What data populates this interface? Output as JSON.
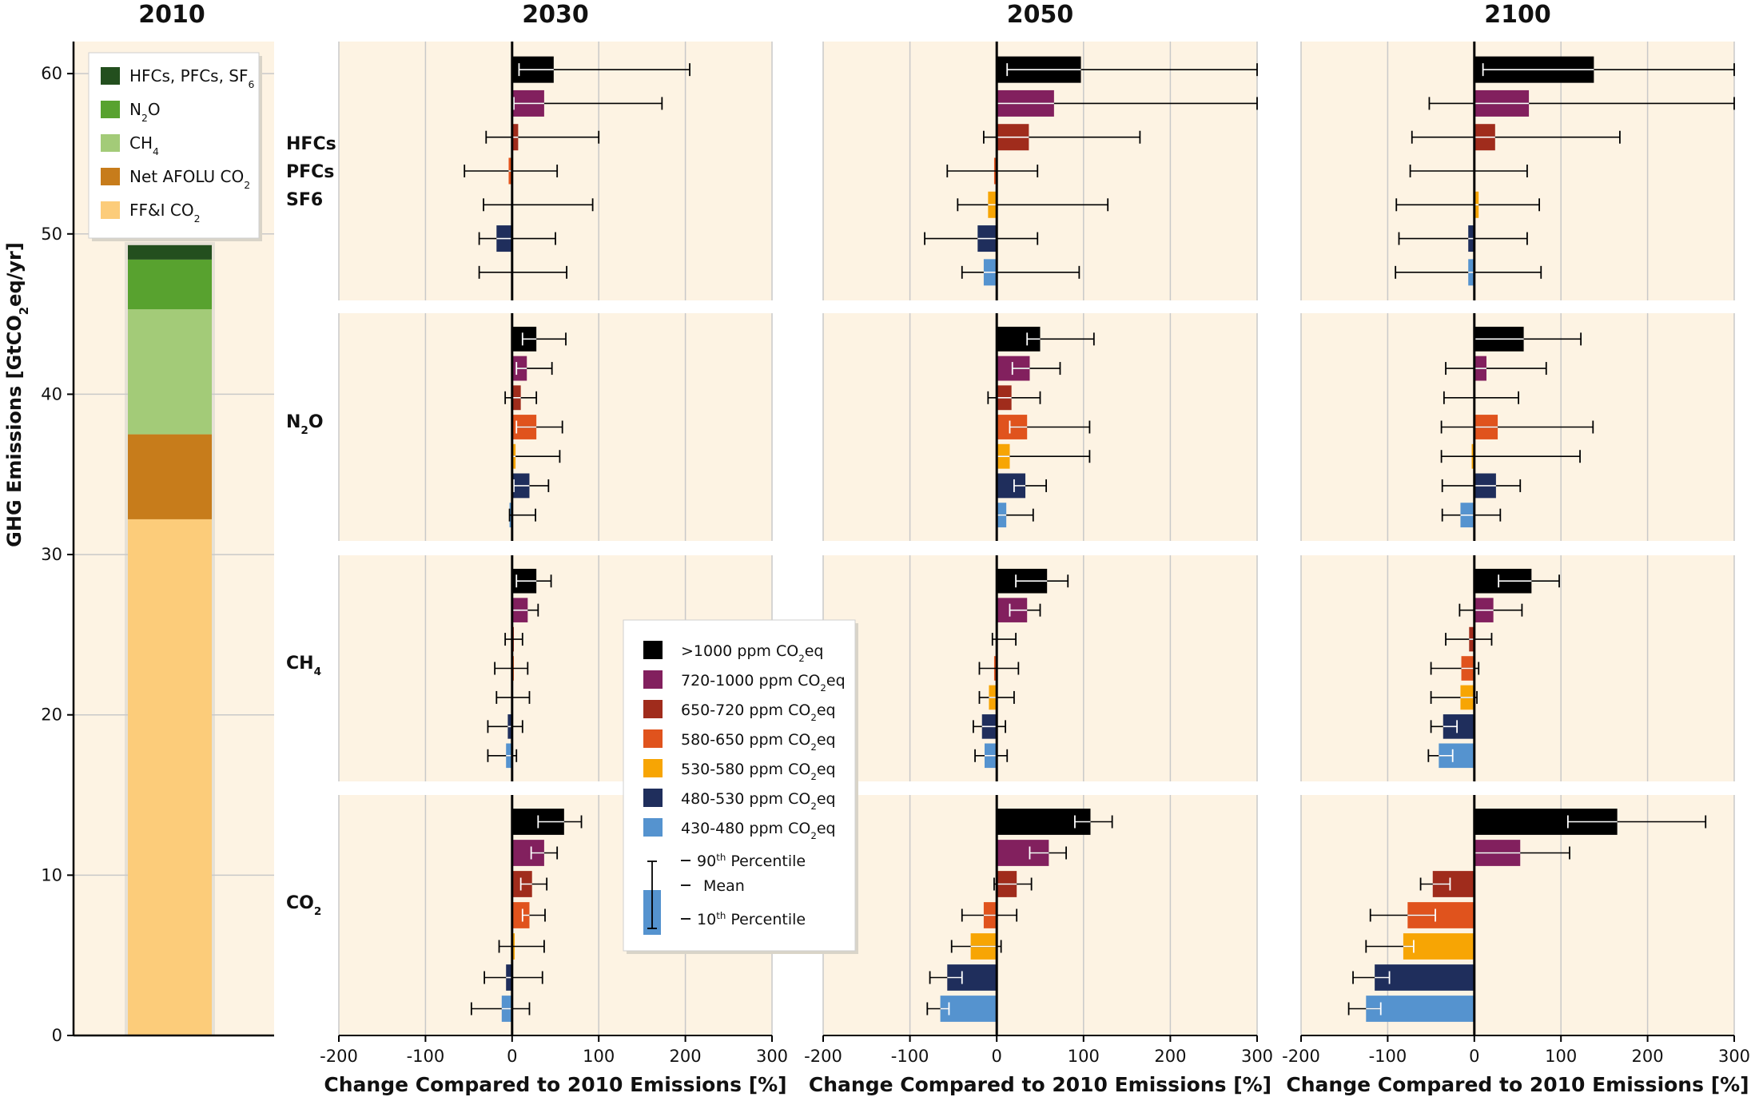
{
  "chart_data": {
    "type": "bar",
    "colors": {
      "panel_bg": "#fdf3e3",
      "grid": "#c9c9c9",
      "hfc": "#234f1e",
      "n2o": "#58a22f",
      "ch4": "#a3cb78",
      "afolu": "#c77c1b",
      "ffi": "#fccc7a",
      "s1000": "#000000",
      "s720": "#82205e",
      "s650": "#a02c1c",
      "s580": "#e0531d",
      "s530": "#f7a504",
      "s480": "#1f2e5c",
      "s430": "#5593cf"
    },
    "left_panel": {
      "title": "2010",
      "ylabel": "GHG Emissions [GtCO₂eq/yr]",
      "ylim": [
        0,
        62
      ],
      "yticks": [
        "0",
        "10",
        "20",
        "30",
        "40",
        "50",
        "60"
      ],
      "stack": [
        {
          "name": "FF&I CO₂",
          "value": 32.2,
          "color_key": "ffi"
        },
        {
          "name": "Net AFOLU CO₂",
          "value": 5.3,
          "color_key": "afolu"
        },
        {
          "name": "CH₄",
          "value": 7.8,
          "color_key": "ch4"
        },
        {
          "name": "N₂O",
          "value": 3.1,
          "color_key": "n2o"
        },
        {
          "name": "HFCs, PFCs, SF₆",
          "value": 0.9,
          "color_key": "hfc"
        }
      ],
      "legend": [
        {
          "label": "HFCs, PFCs, SF₆",
          "color_key": "hfc"
        },
        {
          "label": "N₂O",
          "color_key": "n2o"
        },
        {
          "label": "CH₄",
          "color_key": "ch4"
        },
        {
          "label": "Net AFOLU CO₂",
          "color_key": "afolu"
        },
        {
          "label": "FF&I CO₂",
          "color_key": "ffi"
        }
      ]
    },
    "years": [
      "2030",
      "2050",
      "2100"
    ],
    "gases": [
      "HFCs\nPFCs\nSF6",
      "N₂O",
      "CH₄",
      "CO₂"
    ],
    "xlabel": "Change Compared to 2010 Emissions [%]",
    "xlim": [
      -200,
      300
    ],
    "xticks": [
      "-200",
      "-100",
      "0",
      "100",
      "200",
      "300"
    ],
    "series": [
      {
        "name": ">1000 ppm CO₂eq",
        "color_key": "s1000"
      },
      {
        "name": "720-1000 ppm CO₂eq",
        "color_key": "s720"
      },
      {
        "name": "650-720 ppm CO₂eq",
        "color_key": "s650"
      },
      {
        "name": "580-650 ppm CO₂eq",
        "color_key": "s580"
      },
      {
        "name": "530-580 ppm CO₂eq",
        "color_key": "s530"
      },
      {
        "name": "480-530 ppm CO₂eq",
        "color_key": "s480"
      },
      {
        "name": "430-480 ppm CO₂eq",
        "color_key": "s430"
      }
    ],
    "series_legend_note": {
      "p90": "90th Percentile",
      "mean": "Mean",
      "p10": "10th Percentile"
    },
    "values": {
      "2030": [
        [
          [
            48,
            8,
            205
          ],
          [
            37,
            2,
            173
          ],
          [
            7,
            -30,
            100
          ],
          [
            -4,
            -55,
            52
          ],
          [
            1,
            -33,
            93
          ],
          [
            -18,
            -38,
            50
          ],
          [
            0,
            -38,
            63
          ]
        ],
        [
          [
            28,
            12,
            62
          ],
          [
            17,
            5,
            46
          ],
          [
            10,
            -8,
            28
          ],
          [
            28,
            5,
            58
          ],
          [
            4,
            0,
            55
          ],
          [
            20,
            2,
            42
          ],
          [
            -3,
            -3,
            27
          ]
        ],
        [
          [
            28,
            5,
            45
          ],
          [
            18,
            0,
            30
          ],
          [
            2,
            -8,
            12
          ],
          [
            2,
            -20,
            18
          ],
          [
            1,
            -18,
            20
          ],
          [
            -5,
            -28,
            12
          ],
          [
            -7,
            -28,
            5
          ]
        ],
        [
          [
            60,
            30,
            80
          ],
          [
            37,
            22,
            52
          ],
          [
            23,
            10,
            40
          ],
          [
            20,
            12,
            38
          ],
          [
            3,
            -15,
            37
          ],
          [
            -7,
            -32,
            35
          ],
          [
            -12,
            -47,
            20
          ]
        ]
      ],
      "2050": [
        [
          [
            97,
            12,
            300
          ],
          [
            66,
            0,
            300
          ],
          [
            37,
            -15,
            165
          ],
          [
            -3,
            -57,
            47
          ],
          [
            -10,
            -45,
            128
          ],
          [
            -22,
            -83,
            47
          ],
          [
            -15,
            -40,
            95
          ]
        ],
        [
          [
            50,
            35,
            112
          ],
          [
            38,
            18,
            73
          ],
          [
            17,
            -10,
            50
          ],
          [
            35,
            15,
            107
          ],
          [
            15,
            0,
            107
          ],
          [
            33,
            20,
            57
          ],
          [
            11,
            0,
            42
          ]
        ],
        [
          [
            58,
            22,
            82
          ],
          [
            35,
            15,
            50
          ],
          [
            0,
            -5,
            22
          ],
          [
            -3,
            -20,
            25
          ],
          [
            -9,
            -20,
            20
          ],
          [
            -17,
            -27,
            10
          ],
          [
            -14,
            -25,
            12
          ]
        ],
        [
          [
            108,
            90,
            133
          ],
          [
            60,
            38,
            80
          ],
          [
            23,
            -3,
            40
          ],
          [
            -15,
            -40,
            23
          ],
          [
            -30,
            -52,
            5
          ],
          [
            -57,
            -77,
            -40
          ],
          [
            -65,
            -80,
            -55
          ]
        ]
      ],
      "2100": [
        [
          [
            138,
            10,
            300
          ],
          [
            63,
            -52,
            300
          ],
          [
            24,
            -72,
            168
          ],
          [
            0,
            -74,
            61
          ],
          [
            5,
            -90,
            75
          ],
          [
            -7,
            -87,
            61
          ],
          [
            -7,
            -91,
            77
          ]
        ],
        [
          [
            57,
            0,
            123
          ],
          [
            14,
            -33,
            83
          ],
          [
            0,
            -35,
            51
          ],
          [
            27,
            -38,
            137
          ],
          [
            -3,
            -38,
            122
          ],
          [
            25,
            -37,
            53
          ],
          [
            -16,
            -37,
            30
          ]
        ],
        [
          [
            66,
            28,
            98
          ],
          [
            22,
            -17,
            55
          ],
          [
            -6,
            -33,
            20
          ],
          [
            -15,
            -50,
            5
          ],
          [
            -16,
            -50,
            3
          ],
          [
            -36,
            -50,
            -20
          ],
          [
            -41,
            -53,
            -25
          ]
        ],
        [
          [
            165,
            108,
            267
          ],
          [
            53,
            0,
            110
          ],
          [
            -48,
            -62,
            -28
          ],
          [
            -77,
            -120,
            -45
          ],
          [
            -82,
            -125,
            -70
          ],
          [
            -115,
            -140,
            -98
          ],
          [
            -125,
            -145,
            -108
          ]
        ]
      ]
    }
  }
}
